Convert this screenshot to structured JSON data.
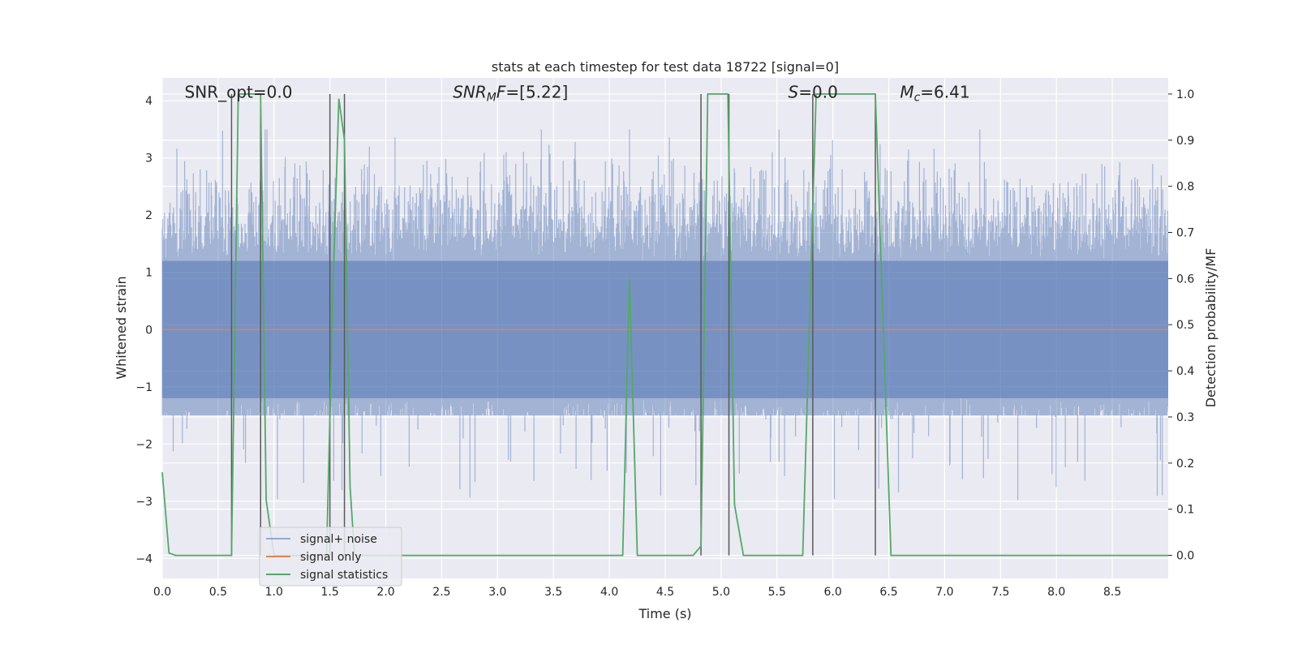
{
  "chart_data": {
    "type": "line",
    "title": "stats at each timestep for test data 18722 [signal=0]",
    "xlabel": "Time (s)",
    "ylabel": "Whitened strain",
    "ylabel_right": "Detection probability/MF",
    "xlim": [
      0,
      9.0
    ],
    "ylim": [
      -4.35,
      4.4
    ],
    "ylim_right": [
      -0.05,
      1.035
    ],
    "x_ticks": [
      0.0,
      0.5,
      1.0,
      1.5,
      2.0,
      2.5,
      3.0,
      3.5,
      4.0,
      4.5,
      5.0,
      5.5,
      6.0,
      6.5,
      7.0,
      7.5,
      8.0,
      8.5
    ],
    "x_tick_labels": [
      "0.0",
      "0.5",
      "1.0",
      "1.5",
      "2.0",
      "2.5",
      "3.0",
      "3.5",
      "4.0",
      "4.5",
      "5.0",
      "5.5",
      "6.0",
      "6.5",
      "7.0",
      "7.5",
      "8.0",
      "8.5"
    ],
    "y_ticks": [
      -4,
      -3,
      -2,
      -1,
      0,
      1,
      2,
      3,
      4
    ],
    "y_tick_labels": [
      "−4",
      "−3",
      "−2",
      "−1",
      "0",
      "1",
      "2",
      "3",
      "4"
    ],
    "y_ticks_right": [
      0.0,
      0.1,
      0.2,
      0.3,
      0.4,
      0.5,
      0.6,
      0.7,
      0.8,
      0.9,
      1.0
    ],
    "y_tick_labels_right": [
      "0.0",
      "0.1",
      "0.2",
      "0.3",
      "0.4",
      "0.5",
      "0.6",
      "0.7",
      "0.8",
      "0.9",
      "1.0"
    ],
    "grid": true,
    "legend_position": "lower-left",
    "annotations": [
      {
        "text": "SNR_opt=0.0",
        "x": 0.2,
        "y": 4.05
      },
      {
        "text": "SNR_MF=[5.22]",
        "x": 2.6,
        "y": 4.05
      },
      {
        "text": "S=0.0",
        "x": 5.6,
        "y": 4.05
      },
      {
        "text": "M_c=6.41",
        "x": 6.6,
        "y": 4.05
      }
    ],
    "series": [
      {
        "name": "signal+ noise",
        "axis": "left",
        "color": "#4c72b0",
        "style": "noise-band",
        "band": [
          -1.5,
          1.5
        ],
        "spike_max": 3.5,
        "spike_min": -4.0
      },
      {
        "name": "signal only",
        "axis": "left",
        "color": "#dd8452",
        "x": [
          0.0,
          9.0
        ],
        "values": [
          0.0,
          0.0
        ]
      },
      {
        "name": "signal statistics",
        "axis": "right",
        "color": "#55a868",
        "x": [
          0.0,
          0.06,
          0.12,
          0.62,
          0.68,
          0.75,
          0.88,
          0.93,
          1.0,
          1.47,
          1.53,
          1.58,
          1.63,
          1.68,
          1.72,
          4.12,
          4.18,
          4.25,
          4.75,
          4.82,
          4.88,
          5.06,
          5.12,
          5.2,
          5.27,
          5.73,
          5.85,
          5.94,
          6.38,
          6.52,
          6.58,
          9.0
        ],
        "values": [
          0.18,
          0.005,
          0.0,
          0.0,
          1.0,
          1.0,
          1.0,
          0.12,
          0.0,
          0.0,
          0.6,
          0.99,
          0.9,
          0.15,
          0.0,
          0.0,
          0.6,
          0.0,
          0.0,
          0.02,
          1.0,
          1.0,
          0.11,
          0.0,
          0.0,
          0.0,
          1.0,
          1.0,
          1.0,
          0.0,
          0.0,
          0.0
        ]
      }
    ],
    "vlines": [
      0.62,
      0.88,
      1.5,
      1.63,
      4.82,
      5.07,
      5.82,
      6.38
    ],
    "vline_color": "#5a5a5a"
  }
}
